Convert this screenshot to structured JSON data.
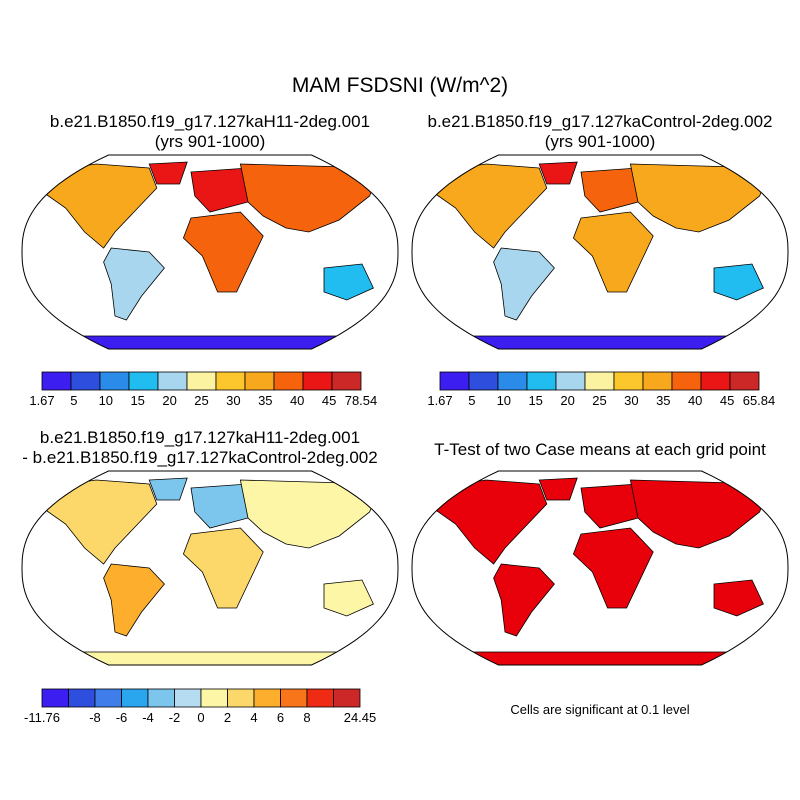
{
  "figure": {
    "title": "MAM FSDSNI (W/m^2)",
    "panels": [
      {
        "title_line1": "b.e21.B1850.f19_g17.127kaH11-2deg.001",
        "title_line2": "(yrs 901-1000)"
      },
      {
        "title_line1": "b.e21.B1850.f19_g17.127kaControl-2deg.002",
        "title_line2": "(yrs 901-1000)"
      },
      {
        "title_line1": "b.e21.B1850.f19_g17.127kaH11-2deg.001",
        "title_line2": "- b.e21.B1850.f19_g17.127kaControl-2deg.002"
      },
      {
        "title_line1": "T-Test of two Case means at each grid point",
        "title_line2": ""
      }
    ],
    "ttest_note": "Cells are significant at 0.1 level"
  },
  "chart_data": [
    {
      "type": "heatmap",
      "title": "b.e21.B1850.f19_g17.127kaH11-2deg.001 (yrs 901-1000)",
      "projection": "robinson",
      "colorbar": {
        "tick_labels": [
          "1.67",
          "5",
          "10",
          "15",
          "20",
          "25",
          "30",
          "35",
          "40",
          "45",
          "78.54"
        ],
        "colors": [
          "#3c1ef0",
          "#2e4ede",
          "#2a8be8",
          "#22bdf0",
          "#a8d6ee",
          "#fbf3a0",
          "#fcc72d",
          "#f8a81c",
          "#f5640c",
          "#ea1616",
          "#cc2828"
        ]
      }
    },
    {
      "type": "heatmap",
      "title": "b.e21.B1850.f19_g17.127kaControl-2deg.002 (yrs 901-1000)",
      "projection": "robinson",
      "colorbar": {
        "tick_labels": [
          "1.67",
          "5",
          "10",
          "15",
          "20",
          "25",
          "30",
          "35",
          "40",
          "45",
          "65.84"
        ],
        "colors": [
          "#3c1ef0",
          "#2e4ede",
          "#2a8be8",
          "#22bdf0",
          "#a8d6ee",
          "#fbf3a0",
          "#fcc72d",
          "#f8a81c",
          "#f5640c",
          "#ea1616",
          "#cc2828"
        ]
      }
    },
    {
      "type": "heatmap",
      "title": "b.e21.B1850.f19_g17.127kaH11-2deg.001 - b.e21.B1850.f19_g17.127kaControl-2deg.002",
      "projection": "robinson",
      "colorbar": {
        "tick_labels": [
          "-11.76",
          "",
          "-8",
          "-6",
          "-4",
          "-2",
          "0",
          "2",
          "4",
          "6",
          "8",
          "",
          "24.45"
        ],
        "colors": [
          "#3c1ef0",
          "#2e4ede",
          "#3f7eea",
          "#2aa6ee",
          "#7cc6ee",
          "#b5dcf0",
          "#fdf6a6",
          "#fcd86a",
          "#fcae2c",
          "#f8751a",
          "#ef2b14",
          "#cc2828"
        ]
      }
    },
    {
      "type": "heatmap",
      "title": "T-Test of two Case means at each grid point",
      "projection": "robinson",
      "significance_level": 0.1,
      "colors": {
        "significant": "#e8000a",
        "not_significant": "#ffffff"
      }
    }
  ]
}
